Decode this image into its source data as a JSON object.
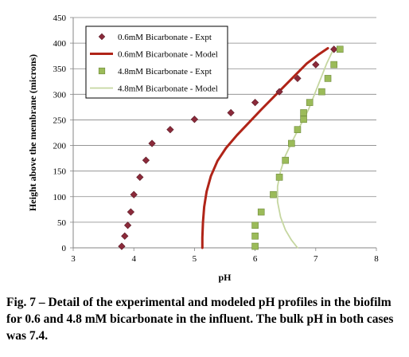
{
  "chart_data": {
    "type": "scatter",
    "xlabel": "pH",
    "ylabel": "Height above the membrane (microns)",
    "xlim": [
      3,
      8
    ],
    "ylim": [
      0,
      450
    ],
    "xticks": [
      "3",
      "4",
      "5",
      "6",
      "7",
      "8"
    ],
    "yticks": [
      "0",
      "50",
      "100",
      "150",
      "200",
      "250",
      "300",
      "350",
      "400",
      "450"
    ],
    "grid": "horizontal",
    "legend_position": "top-left",
    "series": [
      {
        "name": "0.6mM Bicarbonate - Expt",
        "kind": "scatter",
        "marker": "diamond",
        "color": "#8B2A3A",
        "points": [
          [
            3.8,
            3
          ],
          [
            3.85,
            23
          ],
          [
            3.9,
            44
          ],
          [
            3.95,
            70
          ],
          [
            4.0,
            104
          ],
          [
            4.1,
            138
          ],
          [
            4.2,
            171
          ],
          [
            4.3,
            204
          ],
          [
            4.6,
            231
          ],
          [
            5.0,
            251
          ],
          [
            5.6,
            264
          ],
          [
            6.0,
            284
          ],
          [
            6.4,
            305
          ],
          [
            6.7,
            331
          ],
          [
            7.0,
            358
          ],
          [
            7.3,
            388
          ]
        ]
      },
      {
        "name": "0.6mM Bicarbonate - Model",
        "kind": "line",
        "color": "#B02418",
        "points": [
          [
            5.13,
            0
          ],
          [
            5.13,
            20
          ],
          [
            5.14,
            50
          ],
          [
            5.16,
            80
          ],
          [
            5.2,
            110
          ],
          [
            5.27,
            140
          ],
          [
            5.38,
            170
          ],
          [
            5.52,
            195
          ],
          [
            5.7,
            220
          ],
          [
            5.9,
            245
          ],
          [
            6.1,
            270
          ],
          [
            6.35,
            300
          ],
          [
            6.6,
            330
          ],
          [
            6.85,
            360
          ],
          [
            7.05,
            378
          ],
          [
            7.2,
            390
          ]
        ]
      },
      {
        "name": "4.8mM Bicarbonate - Expt",
        "kind": "scatter",
        "marker": "square",
        "color": "#9BBB59",
        "points": [
          [
            6.0,
            3
          ],
          [
            6.0,
            23
          ],
          [
            6.0,
            44
          ],
          [
            6.1,
            70
          ],
          [
            6.3,
            104
          ],
          [
            6.4,
            138
          ],
          [
            6.5,
            171
          ],
          [
            6.6,
            204
          ],
          [
            6.7,
            231
          ],
          [
            6.8,
            251
          ],
          [
            6.8,
            264
          ],
          [
            6.9,
            284
          ],
          [
            7.1,
            305
          ],
          [
            7.2,
            331
          ],
          [
            7.3,
            358
          ],
          [
            7.4,
            388
          ]
        ]
      },
      {
        "name": "4.8mM Bicarbonate - Model",
        "kind": "line",
        "color": "#C5D6A0",
        "points": [
          [
            6.7,
            0
          ],
          [
            6.6,
            15
          ],
          [
            6.5,
            35
          ],
          [
            6.42,
            60
          ],
          [
            6.37,
            90
          ],
          [
            6.37,
            120
          ],
          [
            6.42,
            150
          ],
          [
            6.5,
            180
          ],
          [
            6.62,
            210
          ],
          [
            6.75,
            240
          ],
          [
            6.88,
            270
          ],
          [
            6.98,
            300
          ],
          [
            7.08,
            330
          ],
          [
            7.18,
            360
          ],
          [
            7.3,
            390
          ]
        ]
      }
    ]
  },
  "caption": "Fig. 7 – Detail of the experimental and modeled pH profiles in the biofilm for 0.6 and 4.8 mM bicarbonate in the influent. The bulk pH in both cases was 7.4."
}
